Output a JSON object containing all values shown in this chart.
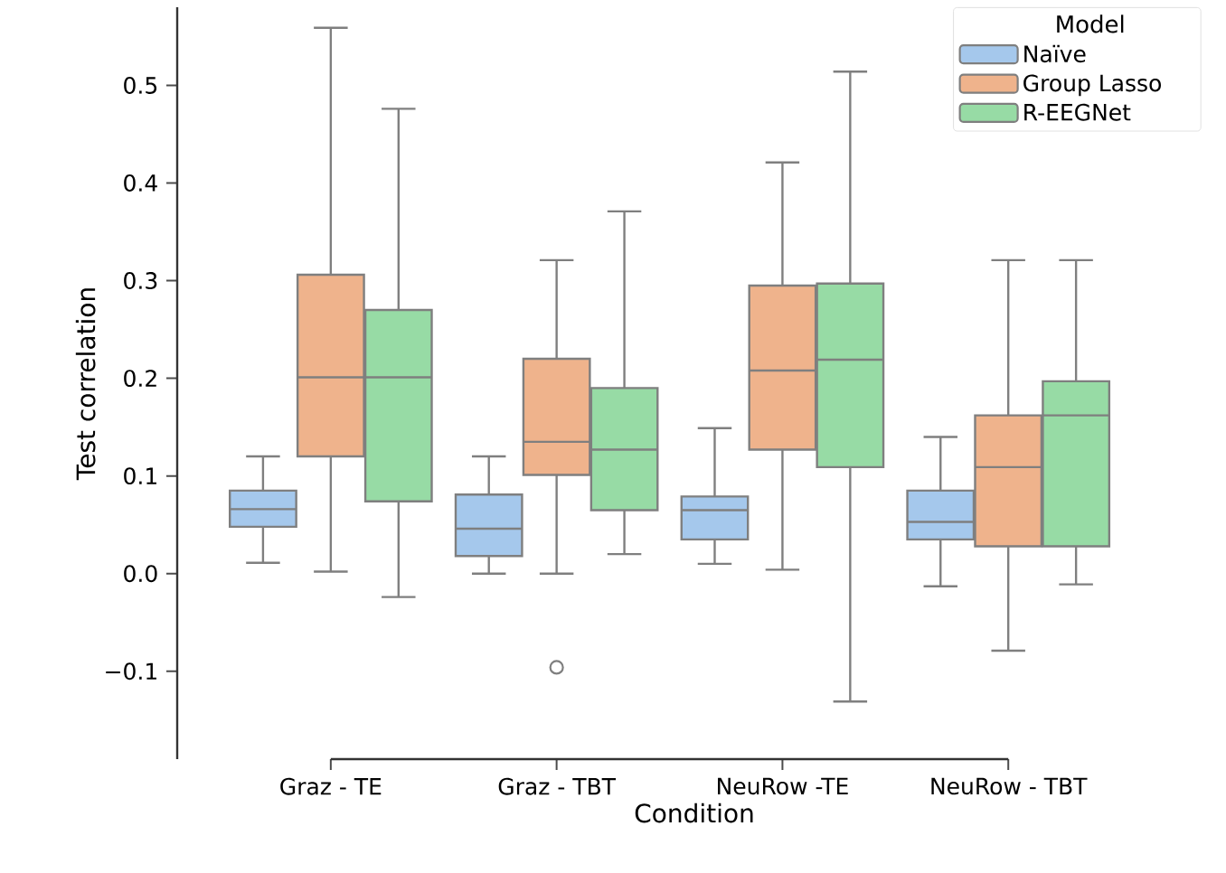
{
  "chart_data": {
    "type": "box",
    "xlabel": "Condition",
    "ylabel": "Test correlation",
    "legend_title": "Model",
    "legend": "top right",
    "categories": [
      "Graz - TE",
      "Graz - TBT",
      "NeuRow -TE",
      "NeuRow - TBT"
    ],
    "ylim": [
      -0.19,
      0.58
    ],
    "yticks": [
      {
        "value": -0.1,
        "label": "−0.1"
      },
      {
        "value": 0.0,
        "label": "0.0"
      },
      {
        "value": 0.1,
        "label": "0.1"
      },
      {
        "value": 0.2,
        "label": "0.2"
      },
      {
        "value": 0.3,
        "label": "0.3"
      },
      {
        "value": 0.4,
        "label": "0.4"
      },
      {
        "value": 0.5,
        "label": "0.5"
      }
    ],
    "series": [
      {
        "name": "Naïve",
        "color": "#a5c8ec",
        "boxes": [
          {
            "low": 0.011,
            "q1": 0.048,
            "median": 0.066,
            "q3": 0.085,
            "high": 0.12
          },
          {
            "low": 0.0,
            "q1": 0.018,
            "median": 0.046,
            "q3": 0.081,
            "high": 0.12
          },
          {
            "low": 0.01,
            "q1": 0.035,
            "median": 0.065,
            "q3": 0.079,
            "high": 0.149
          },
          {
            "low": -0.013,
            "q1": 0.035,
            "median": 0.053,
            "q3": 0.085,
            "high": 0.14
          }
        ]
      },
      {
        "name": "Group Lasso",
        "color": "#efb38c",
        "boxes": [
          {
            "low": 0.002,
            "q1": 0.12,
            "median": 0.201,
            "q3": 0.306,
            "high": 0.559
          },
          {
            "low": 0.0,
            "q1": 0.101,
            "median": 0.135,
            "q3": 0.22,
            "high": 0.321,
            "outliers": [
              -0.096
            ]
          },
          {
            "low": 0.004,
            "q1": 0.127,
            "median": 0.208,
            "q3": 0.295,
            "high": 0.421
          },
          {
            "low": -0.079,
            "q1": 0.028,
            "median": 0.109,
            "q3": 0.162,
            "high": 0.321
          }
        ]
      },
      {
        "name": "R-EEGNet",
        "color": "#97dba5",
        "boxes": [
          {
            "low": -0.024,
            "q1": 0.074,
            "median": 0.201,
            "q3": 0.27,
            "high": 0.476
          },
          {
            "low": 0.02,
            "q1": 0.065,
            "median": 0.127,
            "q3": 0.19,
            "high": 0.371
          },
          {
            "low": -0.131,
            "q1": 0.109,
            "median": 0.219,
            "q3": 0.297,
            "high": 0.514
          },
          {
            "low": -0.011,
            "q1": 0.028,
            "median": 0.162,
            "q3": 0.197,
            "high": 0.321
          }
        ]
      }
    ]
  }
}
